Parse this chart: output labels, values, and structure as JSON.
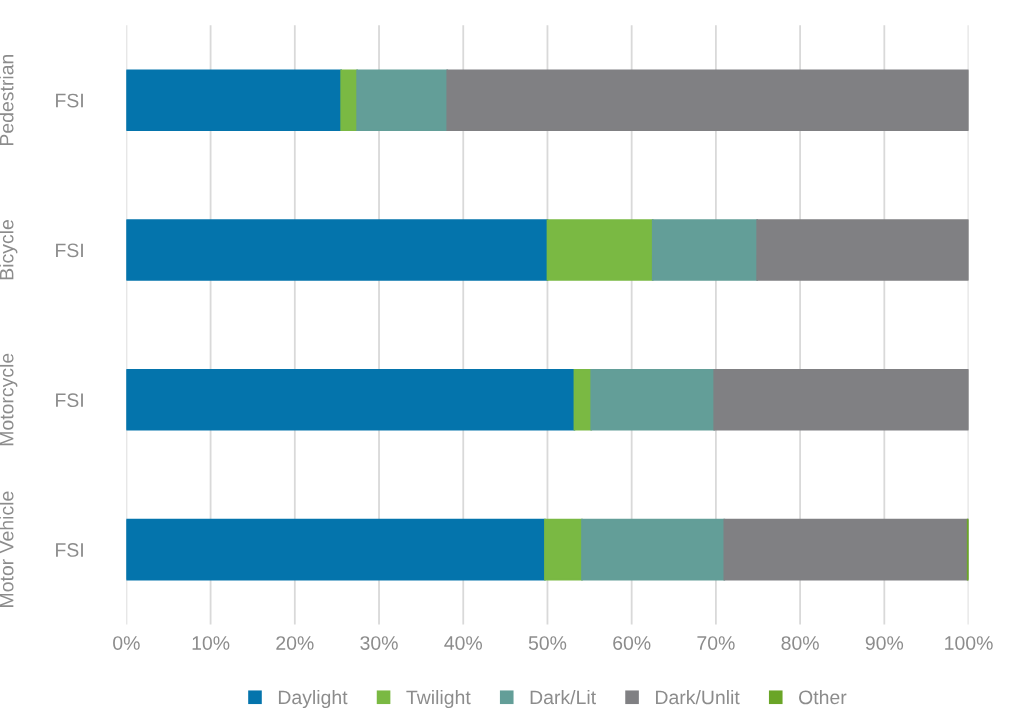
{
  "chart_data": {
    "type": "bar",
    "orientation": "horizontal",
    "stacked": true,
    "categories": [
      "FSI",
      "FSI",
      "FSI",
      "FSI"
    ],
    "annotations": [
      "Pedestrian",
      "Bicycle",
      "Motorcycle",
      "Motor Vehicle"
    ],
    "series": [
      {
        "name": "Daylight",
        "color": "#0474ac",
        "values": [
          25.5,
          50.0,
          53.2,
          49.7
        ]
      },
      {
        "name": "Twilight",
        "color": "#7ab943",
        "values": [
          1.9,
          12.5,
          2.0,
          4.4
        ]
      },
      {
        "name": "Dark/Lit",
        "color": "#639e98",
        "values": [
          10.7,
          12.4,
          14.6,
          16.9
        ]
      },
      {
        "name": "Dark/Unlit",
        "color": "#808083",
        "values": [
          61.9,
          25.1,
          30.2,
          28.9
        ]
      },
      {
        "name": "Other",
        "color": "#6aa527",
        "values": [
          0,
          0,
          0,
          0.1
        ]
      }
    ],
    "xlim": [
      0,
      100
    ],
    "xticks": [
      {
        "value": 0,
        "label": "0%"
      },
      {
        "value": 10,
        "label": "10%"
      },
      {
        "value": 20,
        "label": "20%"
      },
      {
        "value": 30,
        "label": "30%"
      },
      {
        "value": 40,
        "label": "40%"
      },
      {
        "value": 50,
        "label": "50%"
      },
      {
        "value": 60,
        "label": "60%"
      },
      {
        "value": 70,
        "label": "70%"
      },
      {
        "value": 80,
        "label": "80%"
      },
      {
        "value": 90,
        "label": "90%"
      },
      {
        "value": 100,
        "label": "100%"
      }
    ],
    "grid": "x",
    "legend": "bottom"
  }
}
